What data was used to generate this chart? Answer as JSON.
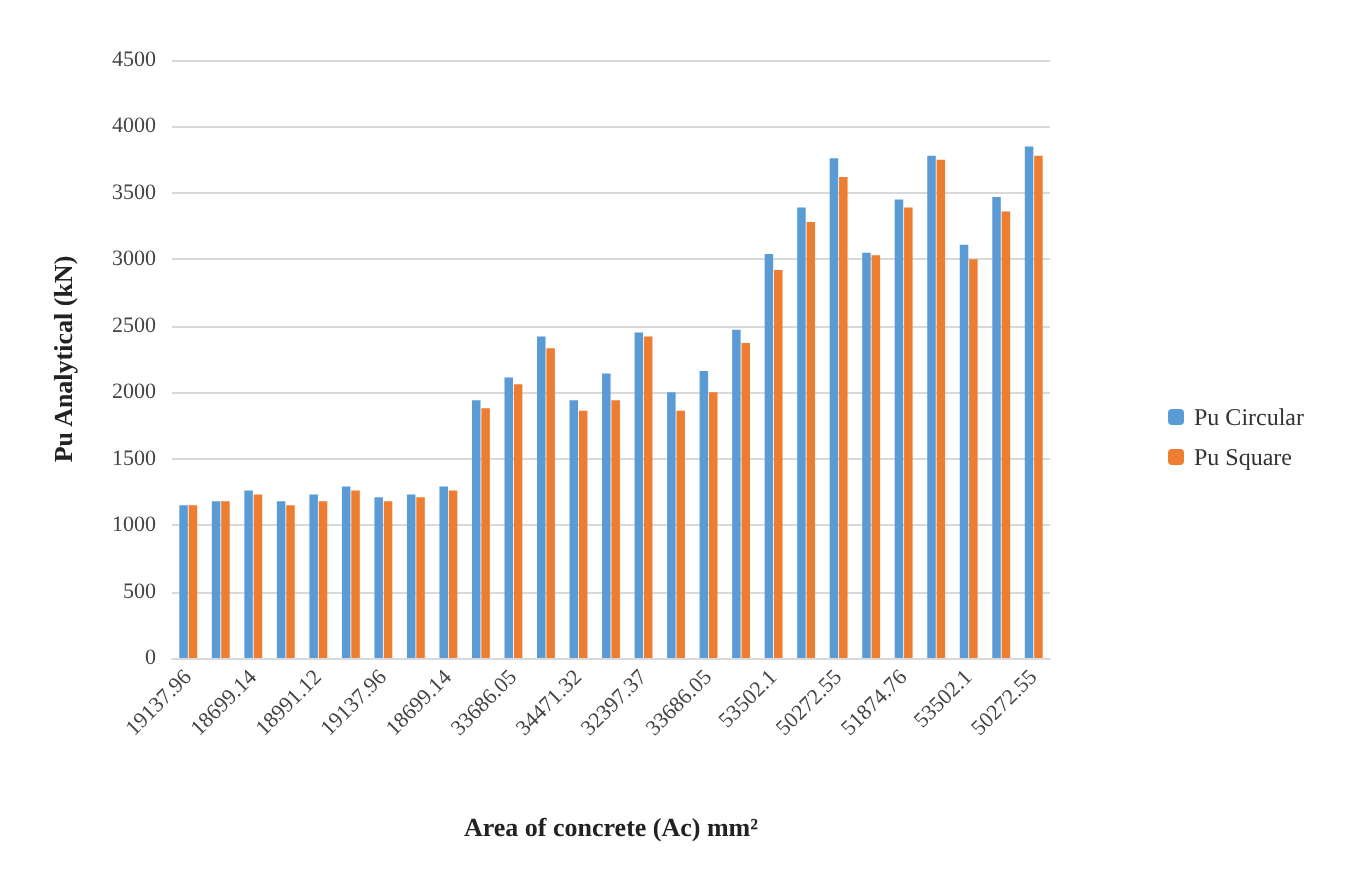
{
  "chart_data": {
    "type": "bar",
    "xlabel": "Area of concrete (Ac) mm²",
    "ylabel": "Pu Analytical (kN)",
    "categories": [
      "19137.96",
      null,
      "18699.14",
      null,
      "18991.12",
      null,
      "19137.96",
      null,
      "18699.14",
      null,
      "33686.05",
      null,
      "34471.32",
      null,
      "32397.37",
      null,
      "33686.05",
      null,
      "53502.1",
      null,
      "50272.55",
      null,
      "51874.76",
      null,
      "53502.1",
      null,
      "50272.55"
    ],
    "series": [
      {
        "name": "Pu Circular",
        "color": "#5b9bd5",
        "values": [
          1150,
          1180,
          1260,
          1180,
          1230,
          1290,
          1210,
          1230,
          1290,
          1940,
          2110,
          2420,
          1940,
          2140,
          2450,
          2000,
          2160,
          2470,
          3040,
          3390,
          3760,
          3050,
          3450,
          3780,
          3110,
          3470,
          3850
        ]
      },
      {
        "name": "Pu Square",
        "color": "#ed7d31",
        "values": [
          1150,
          1180,
          1230,
          1150,
          1180,
          1260,
          1180,
          1210,
          1260,
          1880,
          2060,
          2330,
          1860,
          1940,
          2420,
          1860,
          2000,
          2370,
          2920,
          3280,
          3620,
          3030,
          3390,
          3750,
          3000,
          3360,
          3780
        ]
      }
    ],
    "ylim": [
      0,
      4500
    ],
    "yticks": [
      0,
      500,
      1000,
      1500,
      2000,
      2500,
      3000,
      3500,
      4000,
      4500
    ],
    "grid": "y",
    "legend": "right"
  }
}
